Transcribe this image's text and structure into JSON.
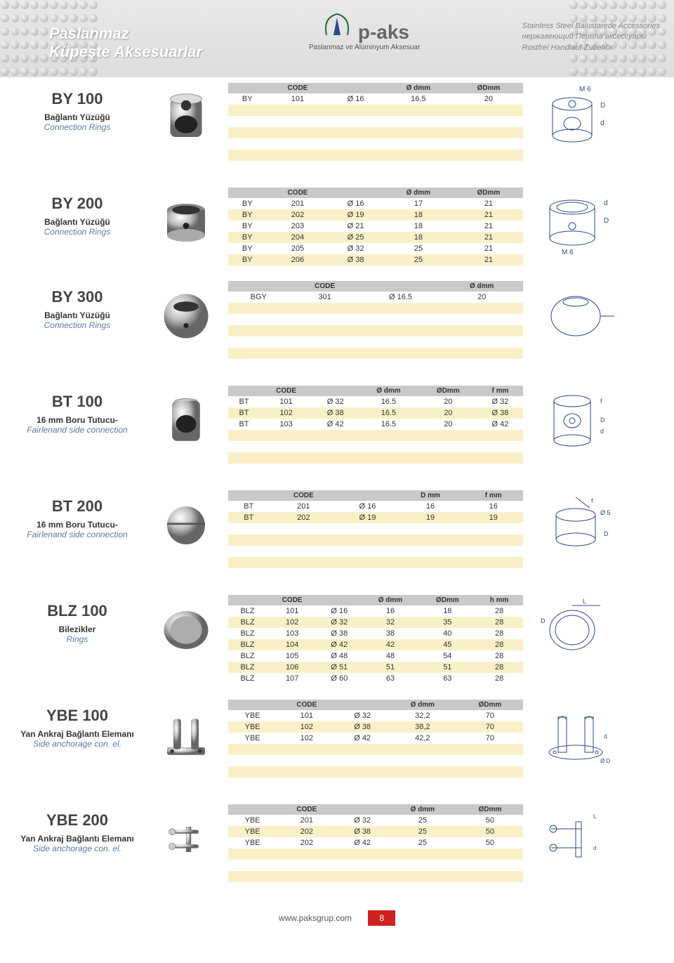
{
  "header": {
    "title1": "Paslanmaz",
    "title2": "Küpeşte Aksesuarlar",
    "brand": "p-aks",
    "brandSub": "Paslanmaz ve Alüminyum Aksesuar",
    "r1": "Stainless Steel Balustarede Accessories",
    "r2": "нержавеющий Перила аксессуары",
    "r3": "Rostfrei Handlauf Zubehör"
  },
  "footer": {
    "url": "www.paksgrup.com",
    "page": "8"
  },
  "products": [
    {
      "code": "BY 100",
      "desc": "Bağlantı Yüzüğü",
      "desc2": "Connection Rings",
      "headers": [
        "",
        "CODE",
        "",
        "Ø dmm",
        "ØDmm"
      ],
      "rows": [
        [
          "BY",
          "101",
          "Ø 16",
          "16,5",
          "20"
        ]
      ],
      "pad": 6
    },
    {
      "code": "BY 200",
      "desc": "Bağlantı Yüzüğü",
      "desc2": "Connection Rings",
      "headers": [
        "",
        "CODE",
        "",
        "Ø dmm",
        "ØDmm"
      ],
      "rows": [
        [
          "BY",
          "201",
          "Ø 16",
          "17",
          "21"
        ],
        [
          "BY",
          "202",
          "Ø 19",
          "18",
          "21"
        ],
        [
          "BY",
          "203",
          "Ø 21",
          "18",
          "21"
        ],
        [
          "BY",
          "204",
          "Ø 25",
          "18",
          "21"
        ],
        [
          "BY",
          "205",
          "Ø 32",
          "25",
          "21"
        ],
        [
          "BY",
          "206",
          "Ø 38",
          "25",
          "21"
        ]
      ],
      "pad": 0
    },
    {
      "code": "BY 300",
      "desc": "Bağlantı Yüzüğü",
      "desc2": "Connection Rings",
      "headers": [
        "",
        "CODE",
        "",
        "Ø dmm"
      ],
      "rows": [
        [
          "BGY",
          "301",
          "Ø 16.5",
          "20"
        ]
      ],
      "pad": 6
    },
    {
      "code": "BT 100",
      "desc": "16 mm Boru Tutucu-",
      "desc2": "Fairlenand side connection",
      "headers": [
        "",
        "CODE",
        "",
        "Ø dmm",
        "ØDmm",
        "f mm"
      ],
      "rows": [
        [
          "BT",
          "101",
          "Ø 32",
          "16.5",
          "20",
          "Ø 32"
        ],
        [
          "BT",
          "102",
          "Ø 38",
          "16.5",
          "20",
          "Ø 38"
        ],
        [
          "BT",
          "103",
          "Ø 42",
          "16.5",
          "20",
          "Ø 42"
        ]
      ],
      "pad": 4
    },
    {
      "code": "BT 200",
      "desc": "16 mm Boru Tutucu-",
      "desc2": "Fairlenand side connection",
      "headers": [
        "",
        "CODE",
        "",
        "D mm",
        "f mm"
      ],
      "rows": [
        [
          "BT",
          "201",
          "Ø 16",
          "16",
          "16"
        ],
        [
          "BT",
          "202",
          "Ø 19",
          "19",
          "19"
        ]
      ],
      "pad": 5
    },
    {
      "code": "BLZ 100",
      "desc": "Bilezikler",
      "desc2": "Rings",
      "headers": [
        "",
        "CODE",
        "",
        "Ø dmm",
        "ØDmm",
        "h mm"
      ],
      "rows": [
        [
          "BLZ",
          "101",
          "Ø 16",
          "16",
          "18",
          "28"
        ],
        [
          "BLZ",
          "102",
          "Ø 32",
          "32",
          "35",
          "28"
        ],
        [
          "BLZ",
          "103",
          "Ø 38",
          "38",
          "40",
          "28"
        ],
        [
          "BLZ",
          "104",
          "Ø 42",
          "42",
          "45",
          "28"
        ],
        [
          "BLZ",
          "105",
          "Ø 48",
          "48",
          "54",
          "28"
        ],
        [
          "BLZ",
          "106",
          "Ø 51",
          "51",
          "51",
          "28"
        ],
        [
          "BLZ",
          "107",
          "Ø 60",
          "63",
          "63",
          "28"
        ]
      ],
      "pad": 0
    },
    {
      "code": "YBE 100",
      "desc": "Yan Ankraj Bağlantı Elemanı",
      "desc2": "Side anchorage con. el.",
      "headers": [
        "",
        "CODE",
        "",
        "Ø dmm",
        "ØDmm"
      ],
      "rows": [
        [
          "YBE",
          "101",
          "Ø 32",
          "32,2",
          "70"
        ],
        [
          "YBE",
          "102",
          "Ø 38",
          "38,2",
          "70"
        ],
        [
          "YBE",
          "102",
          "Ø 42",
          "42,2",
          "70"
        ]
      ],
      "pad": 4
    },
    {
      "code": "YBE 200",
      "desc": "Yan Ankraj Bağlantı Elemanı",
      "desc2": "Side anchorage con. el.",
      "headers": [
        "",
        "CODE",
        "",
        "Ø dmm",
        "ØDmm"
      ],
      "rows": [
        [
          "YBE",
          "201",
          "Ø 32",
          "25",
          "50"
        ],
        [
          "YBE",
          "202",
          "Ø 38",
          "25",
          "50"
        ],
        [
          "YBE",
          "202",
          "Ø 42",
          "25",
          "50"
        ]
      ],
      "pad": 4
    }
  ],
  "shapes": [
    "cyl",
    "cup",
    "ball",
    "cyl2",
    "knob",
    "ring",
    "bracket",
    "bracket2"
  ],
  "diagrams": [
    "d_cyl",
    "d_cup",
    "d_ball",
    "d_cyl2",
    "d_knob",
    "d_ring",
    "d_bracket",
    "d_bracket2"
  ]
}
